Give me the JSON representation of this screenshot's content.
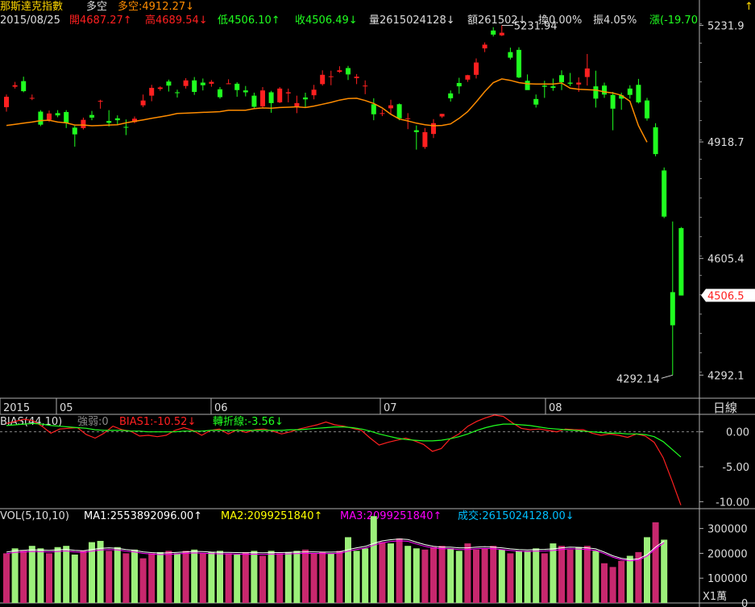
{
  "header": {
    "title": "那斯達克指數",
    "mode": "多空",
    "bull_bear": "多空:4912.27↓",
    "date": "2015/08/25",
    "open": "開4687.27↑",
    "high": "高4689.54↓",
    "low": "低4506.10↑",
    "close": "收4506.49↓",
    "volume": "量2615024128↓",
    "amount": "額261502↓",
    "turnover": "換0.00%",
    "amplitude": "振4.05%",
    "change": "漲(-19.70"
  },
  "period_label": "日線",
  "bias_header": {
    "name": "BIAS(44,10)",
    "strength": "強弱:0",
    "bias1": "BIAS1:-10.52↓",
    "turn": "轉折線:-3.56↓"
  },
  "vol_header": {
    "name": "VOL(5,10,10)",
    "ma1": "MA1:2553892096.00↑",
    "ma2": "MA2:2099251840↑",
    "ma3": "MA3:2099251840↑",
    "deal": "成交:2615024128.00↓"
  },
  "vol_unit": "X1萬",
  "colors": {
    "up": "#ff2020",
    "down": "#20ff20",
    "ma": "#ff8c00",
    "vol_up": "#c8286e",
    "vol_down": "#9cf07a"
  },
  "chart_data": [
    {
      "type": "candlestick",
      "title": "那斯達克指數",
      "y_ticks": [
        "5231.9",
        "4918.7",
        "4605.4",
        "4292.1"
      ],
      "ylim": [
        4230,
        5300
      ],
      "x_ticks": [
        "2015",
        "05",
        "06",
        "07",
        "08"
      ],
      "annotations": {
        "high": "5231.94",
        "low": "4292.14",
        "last": "4506.5"
      },
      "ma_line": [
        4963,
        4966,
        4969,
        4972,
        4976,
        4977,
        4972,
        4970,
        4964,
        4964,
        4962,
        4963,
        4964,
        4965,
        4970,
        4974,
        4978,
        4982,
        4986,
        4990,
        4995,
        4996,
        4997,
        4998,
        4999,
        5000,
        5004,
        5004,
        5004,
        5008,
        5010,
        5009,
        5011,
        5012,
        5013,
        5011,
        5015,
        5020,
        5025,
        5031,
        5035,
        5036,
        5030,
        5022,
        5010,
        4993,
        4980,
        4975,
        4969,
        4965,
        4962,
        4963,
        4967,
        4982,
        5000,
        5026,
        5054,
        5078,
        5088,
        5084,
        5078,
        5075,
        5074,
        5074,
        5074,
        5077,
        5063,
        5060,
        5059,
        5058,
        5053,
        5050,
        5044,
        5028,
        4962,
        4918
      ],
      "candles": [
        {
          "o": 5012,
          "c": 5040,
          "h": 5046,
          "l": 5000
        },
        {
          "o": 5067,
          "c": 5071,
          "h": 5080,
          "l": 5062
        },
        {
          "o": 5082,
          "c": 5055,
          "h": 5094,
          "l": 5052
        },
        {
          "o": 5037,
          "c": 5037,
          "h": 5046,
          "l": 5031
        },
        {
          "o": 5000,
          "c": 4965,
          "h": 5004,
          "l": 4961
        },
        {
          "o": 4978,
          "c": 4995,
          "h": 5003,
          "l": 4972
        },
        {
          "o": 4996,
          "c": 4990,
          "h": 5004,
          "l": 4985
        },
        {
          "o": 4999,
          "c": 4969,
          "h": 5004,
          "l": 4956
        },
        {
          "o": 4957,
          "c": 4939,
          "h": 4962,
          "l": 4906
        },
        {
          "o": 4956,
          "c": 4978,
          "h": 4984,
          "l": 4952
        },
        {
          "o": 4991,
          "c": 4984,
          "h": 5002,
          "l": 4977
        },
        {
          "o": 5027,
          "c": 5029,
          "h": 5032,
          "l": 5008
        },
        {
          "o": 4975,
          "c": 4970,
          "h": 5004,
          "l": 4960
        },
        {
          "o": 4982,
          "c": 4977,
          "h": 4990,
          "l": 4965
        },
        {
          "o": 4959,
          "c": 4958,
          "h": 4979,
          "l": 4937
        },
        {
          "o": 4972,
          "c": 4981,
          "h": 4987,
          "l": 4969
        },
        {
          "o": 5017,
          "c": 5030,
          "h": 5046,
          "l": 5012
        },
        {
          "o": 5043,
          "c": 5064,
          "h": 5072,
          "l": 5028
        },
        {
          "o": 5061,
          "c": 5065,
          "h": 5068,
          "l": 5056
        },
        {
          "o": 5081,
          "c": 5070,
          "h": 5086,
          "l": 5054
        },
        {
          "o": 5052,
          "c": 5050,
          "h": 5059,
          "l": 5038
        },
        {
          "o": 5069,
          "c": 5084,
          "h": 5090,
          "l": 5062
        },
        {
          "o": 5084,
          "c": 5053,
          "h": 5093,
          "l": 5045
        },
        {
          "o": 5078,
          "c": 5071,
          "h": 5089,
          "l": 5057
        },
        {
          "o": 5075,
          "c": 5080,
          "h": 5085,
          "l": 5067
        },
        {
          "o": 5060,
          "c": 5039,
          "h": 5066,
          "l": 5035
        },
        {
          "o": 5076,
          "c": 5076,
          "h": 5087,
          "l": 5074
        },
        {
          "o": 5075,
          "c": 5058,
          "h": 5079,
          "l": 5040
        },
        {
          "o": 5057,
          "c": 5052,
          "h": 5069,
          "l": 5041
        },
        {
          "o": 5043,
          "c": 5013,
          "h": 5051,
          "l": 5010
        },
        {
          "o": 5014,
          "c": 5057,
          "h": 5066,
          "l": 5011
        },
        {
          "o": 5052,
          "c": 5023,
          "h": 5056,
          "l": 4997
        },
        {
          "o": 5025,
          "c": 5062,
          "h": 5066,
          "l": 5023
        },
        {
          "o": 5049,
          "c": 5052,
          "h": 5062,
          "l": 5025
        },
        {
          "o": 5013,
          "c": 5023,
          "h": 5043,
          "l": 4996
        },
        {
          "o": 5038,
          "c": 5033,
          "h": 5051,
          "l": 5013
        },
        {
          "o": 5044,
          "c": 5059,
          "h": 5072,
          "l": 5033
        },
        {
          "o": 5074,
          "c": 5099,
          "h": 5111,
          "l": 5070
        },
        {
          "o": 5095,
          "c": 5095,
          "h": 5110,
          "l": 5071
        },
        {
          "o": 5107,
          "c": 5111,
          "h": 5122,
          "l": 5104
        },
        {
          "o": 5117,
          "c": 5100,
          "h": 5123,
          "l": 5085
        },
        {
          "o": 5090,
          "c": 5094,
          "h": 5101,
          "l": 5074
        },
        {
          "o": 5070,
          "c": 5070,
          "h": 5084,
          "l": 5047
        },
        {
          "o": 5020,
          "c": 4993,
          "h": 5036,
          "l": 4977
        },
        {
          "o": 4994,
          "c": 4996,
          "h": 5006,
          "l": 4988
        },
        {
          "o": 5009,
          "c": 5017,
          "h": 5032,
          "l": 4991
        },
        {
          "o": 5020,
          "c": 4982,
          "h": 5022,
          "l": 4977
        },
        {
          "o": 4982,
          "c": 4982,
          "h": 4996,
          "l": 4953
        },
        {
          "o": 4950,
          "c": 4945,
          "h": 4963,
          "l": 4898
        },
        {
          "o": 4905,
          "c": 4945,
          "h": 4956,
          "l": 4900
        },
        {
          "o": 4940,
          "c": 4969,
          "h": 4980,
          "l": 4929
        },
        {
          "o": 4987,
          "c": 4994,
          "h": 4994,
          "l": 4983
        },
        {
          "o": 5049,
          "c": 5036,
          "h": 5057,
          "l": 5027
        },
        {
          "o": 5077,
          "c": 5068,
          "h": 5091,
          "l": 5048
        },
        {
          "o": 5086,
          "c": 5098,
          "h": 5099,
          "l": 5080
        },
        {
          "o": 5099,
          "c": 5132,
          "h": 5143,
          "l": 5089
        },
        {
          "o": 5170,
          "c": 5180,
          "h": 5186,
          "l": 5160
        },
        {
          "o": 5218,
          "c": 5207,
          "h": 5227,
          "l": 5202
        },
        {
          "o": 5205,
          "c": 5212,
          "h": 5232,
          "l": 5203
        },
        {
          "o": 5160,
          "c": 5145,
          "h": 5172,
          "l": 5140
        },
        {
          "o": 5166,
          "c": 5092,
          "h": 5173,
          "l": 5090
        },
        {
          "o": 5083,
          "c": 5058,
          "h": 5100,
          "l": 5066
        },
        {
          "o": 5034,
          "c": 5019,
          "h": 5046,
          "l": 5011
        },
        {
          "o": 5070,
          "c": 5067,
          "h": 5083,
          "l": 5037
        },
        {
          "o": 5068,
          "c": 5064,
          "h": 5089,
          "l": 5056
        },
        {
          "o": 5098,
          "c": 5079,
          "h": 5111,
          "l": 5058
        },
        {
          "o": 5078,
          "c": 5075,
          "h": 5104,
          "l": 5069
        },
        {
          "o": 5073,
          "c": 5078,
          "h": 5092,
          "l": 5053
        },
        {
          "o": 5093,
          "c": 5116,
          "h": 5155,
          "l": 5070
        },
        {
          "o": 5068,
          "c": 5035,
          "h": 5110,
          "l": 5011
        },
        {
          "o": 5070,
          "c": 5046,
          "h": 5078,
          "l": 5037
        },
        {
          "o": 5045,
          "c": 5008,
          "h": 5053,
          "l": 4950
        },
        {
          "o": 5044,
          "c": 5035,
          "h": 5051,
          "l": 5005
        },
        {
          "o": 5062,
          "c": 5045,
          "h": 5071,
          "l": 5035
        },
        {
          "o": 5072,
          "c": 5025,
          "h": 5088,
          "l": 5022
        },
        {
          "o": 5030,
          "c": 4982,
          "h": 5037,
          "l": 4976
        },
        {
          "o": 4958,
          "c": 4886,
          "h": 4969,
          "l": 4880
        },
        {
          "o": 4842,
          "c": 4718,
          "h": 4850,
          "l": 4714
        },
        {
          "o": 4515,
          "c": 4426,
          "h": 4705,
          "l": 4292
        },
        {
          "o": 4687,
          "c": 4506,
          "h": 4690,
          "l": 4506
        }
      ]
    },
    {
      "type": "line",
      "title": "BIAS(44,10)",
      "y_ticks": [
        "0.00",
        "-5.00",
        "-10.00"
      ],
      "ylim": [
        -11,
        2.5
      ],
      "series": [
        {
          "name": "BIAS1",
          "values": [
            1.2,
            1.5,
            1.8,
            1.6,
            0.8,
            -0.2,
            0.4,
            0.5,
            0.6,
            -0.4,
            -0.9,
            -0.2,
            0.8,
            0.3,
            0.1,
            -0.6,
            -0.5,
            -0.7,
            -0.5,
            0.2,
            0.6,
            0.2,
            -0.5,
            0.2,
            0.4,
            -0.3,
            0.3,
            -0.1,
            0.3,
            0.4,
            0.1,
            -0.3,
            0.0,
            0.4,
            0.7,
            1.0,
            1.4,
            1.0,
            0.8,
            0.5,
            0.2,
            -0.9,
            -1.9,
            -1.5,
            -1.2,
            -0.9,
            -1.3,
            -1.8,
            -2.8,
            -2.4,
            -1.0,
            -0.3,
            0.8,
            1.5,
            2.0,
            2.4,
            2.2,
            1.3,
            0.5,
            0.3,
            0.4,
            0.2,
            0.0,
            0.4,
            0.3,
            0.3,
            -0.2,
            -0.5,
            -0.3,
            -0.5,
            -0.8,
            -0.3,
            -0.6,
            -1.5,
            -3.7,
            -7.0,
            -10.5
          ]
        },
        {
          "name": "轉折線",
          "values": [
            0.9,
            1.0,
            1.1,
            1.2,
            1.1,
            0.9,
            0.8,
            0.7,
            0.6,
            0.5,
            0.3,
            0.2,
            0.2,
            0.2,
            0.1,
            0.1,
            0.0,
            0.0,
            0.0,
            0.0,
            0.1,
            0.1,
            0.1,
            0.2,
            0.2,
            0.2,
            0.2,
            0.2,
            0.2,
            0.2,
            0.2,
            0.2,
            0.3,
            0.3,
            0.4,
            0.5,
            0.6,
            0.7,
            0.7,
            0.6,
            0.4,
            0.1,
            -0.3,
            -0.6,
            -0.9,
            -1.1,
            -1.2,
            -1.3,
            -1.3,
            -1.2,
            -1.0,
            -0.7,
            -0.3,
            0.2,
            0.6,
            0.9,
            1.1,
            1.1,
            1.0,
            0.9,
            0.7,
            0.5,
            0.4,
            0.3,
            0.2,
            0.1,
            0.0,
            -0.1,
            -0.2,
            -0.2,
            -0.3,
            -0.3,
            -0.4,
            -0.7,
            -1.4,
            -2.5,
            -3.6
          ]
        }
      ]
    },
    {
      "type": "bar",
      "title": "VOL(5,10,10)",
      "y_ticks": [
        "300000",
        "200000",
        "100000",
        "0"
      ],
      "ylim": [
        0,
        380000
      ],
      "values": [
        200000,
        220000,
        210000,
        230000,
        220000,
        200000,
        225000,
        230000,
        195000,
        210000,
        245000,
        250000,
        210000,
        225000,
        200000,
        215000,
        180000,
        200000,
        205000,
        210000,
        200000,
        210000,
        215000,
        200000,
        205000,
        210000,
        200000,
        195000,
        205000,
        210000,
        190000,
        210000,
        200000,
        205000,
        210000,
        215000,
        200000,
        205000,
        200000,
        210000,
        265000,
        210000,
        220000,
        350000,
        245000,
        240000,
        260000,
        230000,
        220000,
        215000,
        225000,
        230000,
        220000,
        210000,
        240000,
        215000,
        220000,
        230000,
        215000,
        200000,
        210000,
        210000,
        220000,
        200000,
        240000,
        230000,
        215000,
        225000,
        230000,
        210000,
        160000,
        145000,
        170000,
        190000,
        205000,
        265000,
        325000,
        255000
      ],
      "up": [
        true,
        false,
        true,
        false,
        false,
        true,
        false,
        false,
        false,
        true,
        false,
        false,
        true,
        false,
        true,
        false,
        true,
        true,
        false,
        true,
        false,
        true,
        false,
        true,
        false,
        false,
        true,
        false,
        true,
        false,
        true,
        false,
        true,
        false,
        false,
        true,
        true,
        true,
        false,
        true,
        false,
        false,
        false,
        false,
        true,
        false,
        true,
        false,
        false,
        true,
        true,
        true,
        false,
        false,
        true,
        true,
        true,
        true,
        false,
        true,
        false,
        false,
        false,
        true,
        false,
        true,
        true,
        false,
        true,
        false,
        true,
        true,
        true,
        false,
        true,
        false,
        true,
        false
      ],
      "ma_line": [
        205000,
        210000,
        212000,
        214000,
        213000,
        212000,
        214000,
        216000,
        212000,
        210000,
        215000,
        220000,
        222000,
        220000,
        215000,
        212000,
        206000,
        203000,
        201000,
        202000,
        204000,
        206000,
        208000,
        207000,
        205000,
        204000,
        204000,
        203000,
        202000,
        203000,
        202000,
        203000,
        203000,
        204000,
        205000,
        206000,
        206000,
        205000,
        205000,
        206000,
        215000,
        222000,
        228000,
        240000,
        250000,
        255000,
        258000,
        256000,
        245000,
        235000,
        228000,
        225000,
        225000,
        222000,
        222000,
        225000,
        227000,
        225000,
        222000,
        218000,
        215000,
        214000,
        215000,
        216000,
        218000,
        222000,
        225000,
        224000,
        222000,
        218000,
        205000,
        190000,
        180000,
        175000,
        178000,
        195000,
        225000,
        250000
      ]
    }
  ]
}
